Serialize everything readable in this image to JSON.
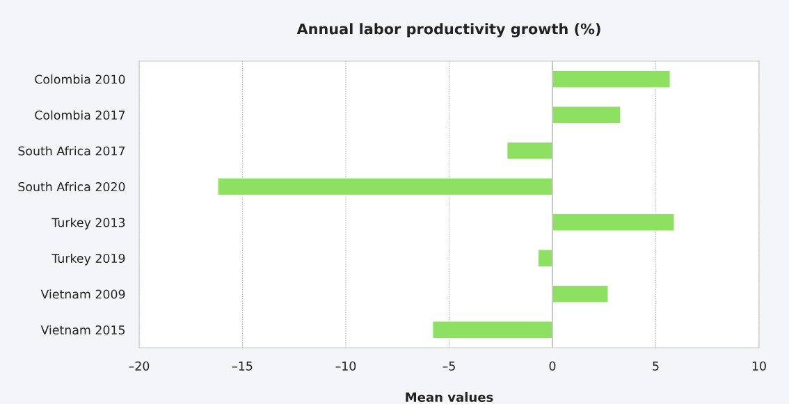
{
  "chart_data": {
    "type": "bar",
    "orientation": "horizontal",
    "title": "Annual labor productivity growth (%)",
    "xlabel": "Mean values",
    "categories": [
      "Colombia 2010",
      "Colombia 2017",
      "South Africa 2017",
      "South Africa 2020",
      "Turkey 2013",
      "Turkey 2019",
      "Vietnam 2009",
      "Vietnam 2015"
    ],
    "values": [
      5.7,
      3.3,
      -2.2,
      -16.2,
      5.9,
      -0.7,
      2.7,
      -5.8
    ],
    "color": "#8ee063",
    "xlim": [
      -20,
      10
    ],
    "xticks": [
      {
        "value": -20,
        "label": "–20"
      },
      {
        "value": -15,
        "label": "–15"
      },
      {
        "value": -10,
        "label": "–10"
      },
      {
        "value": -5,
        "label": "–5"
      },
      0,
      5,
      10
    ],
    "grid": "x",
    "ref_lines": [
      {
        "axis": "x",
        "value": 0,
        "color": "#b8b8b8",
        "line_style": "solid"
      }
    ]
  }
}
